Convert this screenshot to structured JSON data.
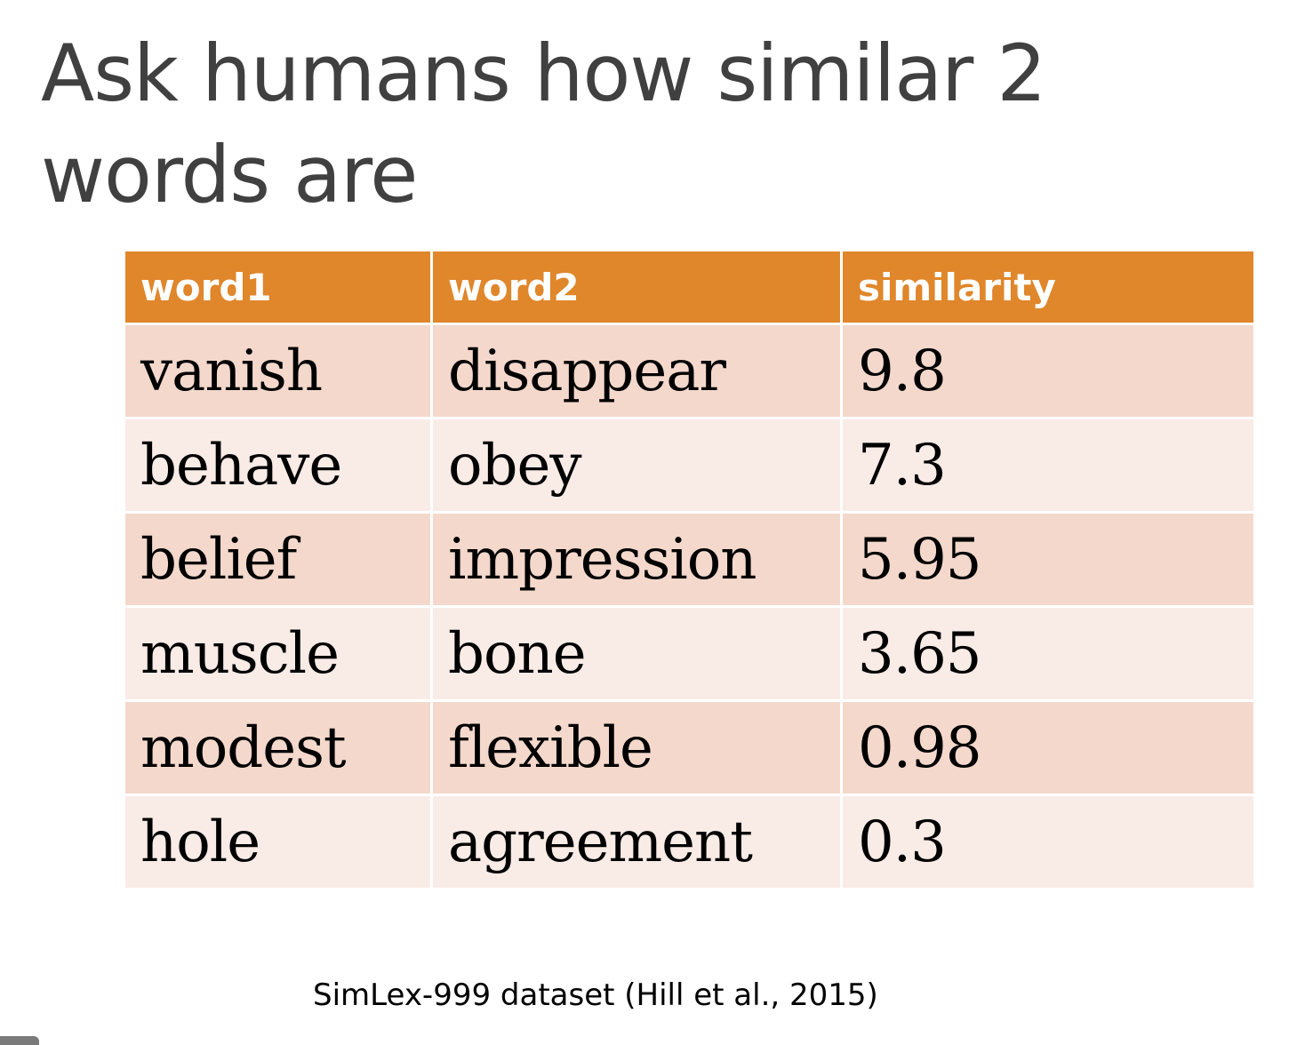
{
  "slide": {
    "title": "Ask humans how similar 2 words are"
  },
  "table": {
    "headers": [
      "word1",
      "word2",
      "similarity"
    ],
    "rows": [
      [
        "vanish",
        "disappear",
        "9.8"
      ],
      [
        "behave",
        "obey",
        "7.3"
      ],
      [
        "belief",
        "impression",
        "5.95"
      ],
      [
        "muscle",
        "bone",
        "3.65"
      ],
      [
        "modest",
        "flexible",
        "0.98"
      ],
      [
        "hole",
        "agreement",
        "0.3"
      ]
    ]
  },
  "caption": "SimLex-999 dataset (Hill et al., 2015)",
  "colors": {
    "header_bg": "#e0862b",
    "row_odd_bg": "#f4d8cc",
    "row_even_bg": "#f9ebe6",
    "title_text": "#404040"
  }
}
